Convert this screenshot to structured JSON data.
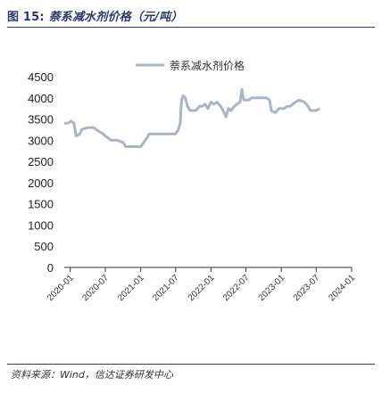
{
  "figure": {
    "label": "图 15:",
    "title": "萘系减水剂价格（元/吨）",
    "source": "资料来源：Wind，信达证券研发中心"
  },
  "colors": {
    "series": "#aab4c6",
    "axis": "#333333",
    "title": "#2b3a67"
  },
  "chart_data": {
    "type": "line",
    "title": "",
    "xlabel": "",
    "ylabel": "",
    "ylim": [
      0,
      4500
    ],
    "yticks": [
      0,
      500,
      1000,
      1500,
      2000,
      2500,
      3000,
      3500,
      4000,
      4500
    ],
    "xlim": [
      "2019-12-01",
      "2024-01-01"
    ],
    "xticks": [
      "2020-01",
      "2020-07",
      "2021-01",
      "2021-07",
      "2022-01",
      "2022-07",
      "2023-01",
      "2023-07",
      "2024-01"
    ],
    "grid": false,
    "legend": "top-center",
    "series": [
      {
        "name": "萘系减水剂价格",
        "points": [
          [
            "2019-12-01",
            3400
          ],
          [
            "2019-12-20",
            3400
          ],
          [
            "2020-01-05",
            3450
          ],
          [
            "2020-01-20",
            3400
          ],
          [
            "2020-02-01",
            3100
          ],
          [
            "2020-02-20",
            3150
          ],
          [
            "2020-03-01",
            3250
          ],
          [
            "2020-04-01",
            3300
          ],
          [
            "2020-05-01",
            3300
          ],
          [
            "2020-06-01",
            3200
          ],
          [
            "2020-06-20",
            3150
          ],
          [
            "2020-07-01",
            3100
          ],
          [
            "2020-08-01",
            3000
          ],
          [
            "2020-09-01",
            3000
          ],
          [
            "2020-10-01",
            2950
          ],
          [
            "2020-10-15",
            2850
          ],
          [
            "2020-11-15",
            2850
          ],
          [
            "2020-12-15",
            2850
          ],
          [
            "2021-01-01",
            2850
          ],
          [
            "2021-02-01",
            3050
          ],
          [
            "2021-02-15",
            3150
          ],
          [
            "2021-04-01",
            3150
          ],
          [
            "2021-06-01",
            3150
          ],
          [
            "2021-07-01",
            3150
          ],
          [
            "2021-07-15",
            3250
          ],
          [
            "2021-07-25",
            3400
          ],
          [
            "2021-08-01",
            3950
          ],
          [
            "2021-08-10",
            4050
          ],
          [
            "2021-08-20",
            4000
          ],
          [
            "2021-09-01",
            3800
          ],
          [
            "2021-09-15",
            3700
          ],
          [
            "2021-10-15",
            3700
          ],
          [
            "2021-11-01",
            3800
          ],
          [
            "2021-11-15",
            3800
          ],
          [
            "2021-12-01",
            3850
          ],
          [
            "2021-12-15",
            3750
          ],
          [
            "2022-01-01",
            3900
          ],
          [
            "2022-01-15",
            3850
          ],
          [
            "2022-02-01",
            3900
          ],
          [
            "2022-02-20",
            3800
          ],
          [
            "2022-03-05",
            3700
          ],
          [
            "2022-03-20",
            3550
          ],
          [
            "2022-04-01",
            3750
          ],
          [
            "2022-04-15",
            3700
          ],
          [
            "2022-05-01",
            3800
          ],
          [
            "2022-05-15",
            3850
          ],
          [
            "2022-06-01",
            3900
          ],
          [
            "2022-06-10",
            4200
          ],
          [
            "2022-06-20",
            3950
          ],
          [
            "2022-07-15",
            3950
          ],
          [
            "2022-08-01",
            4000
          ],
          [
            "2022-09-01",
            4000
          ],
          [
            "2022-10-15",
            4000
          ],
          [
            "2022-11-01",
            3950
          ],
          [
            "2022-11-10",
            3700
          ],
          [
            "2022-12-01",
            3650
          ],
          [
            "2022-12-20",
            3750
          ],
          [
            "2023-01-15",
            3750
          ],
          [
            "2023-02-01",
            3800
          ],
          [
            "2023-02-15",
            3800
          ],
          [
            "2023-03-01",
            3850
          ],
          [
            "2023-04-01",
            3950
          ],
          [
            "2023-05-01",
            3900
          ],
          [
            "2023-05-20",
            3800
          ],
          [
            "2023-06-01",
            3700
          ],
          [
            "2023-07-01",
            3700
          ],
          [
            "2023-07-20",
            3750
          ]
        ]
      }
    ]
  }
}
